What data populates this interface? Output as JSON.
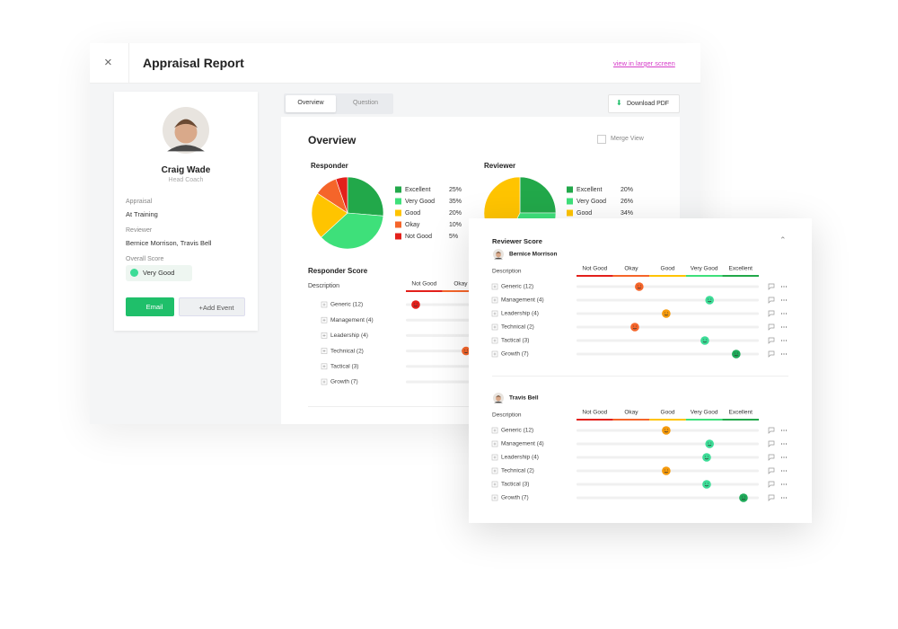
{
  "header": {
    "close": "×",
    "title": "Appraisal Report",
    "link": "view in larger screen"
  },
  "profile": {
    "name": "Craig Wade",
    "role": "Head Coach",
    "fields": [
      {
        "label": "Appraisal",
        "value": "At Training"
      },
      {
        "label": "Reviewer",
        "value": "Bernice Morrison, Travis Bell"
      },
      {
        "label": "Overall Score",
        "value": "Very Good"
      }
    ],
    "buttons": [
      "Email",
      "+Add Event"
    ]
  },
  "tabs": [
    "Overview",
    "Question"
  ],
  "download": "Download PDF",
  "overview": {
    "title": "Overview",
    "merge": "Merge View"
  },
  "chart_data": [
    {
      "type": "pie",
      "title": "Responder",
      "categories": [
        "Excellent",
        "Very Good",
        "Good",
        "Okay",
        "Not Good"
      ],
      "values": [
        25,
        35,
        20,
        10,
        5
      ],
      "value_labels": [
        "25%",
        "35%",
        "20%",
        "10%",
        "5%"
      ],
      "colors": [
        "#22a84a",
        "#3ee07a",
        "#ffc400",
        "#f5652a",
        "#e3201b"
      ]
    },
    {
      "type": "pie",
      "title": "Reviewer",
      "categories": [
        "Excellent",
        "Very Good",
        "Good"
      ],
      "values": [
        20,
        26,
        34
      ],
      "value_labels": [
        "20%",
        "26%",
        "34%"
      ],
      "colors": [
        "#22a84a",
        "#3ee07a",
        "#ffc400"
      ]
    }
  ],
  "scale": {
    "labels": [
      "Not Good",
      "Okay",
      "Good",
      "Very Good",
      "Excellent"
    ],
    "colors": [
      "#e3201b",
      "#f5652a",
      "#ffc400",
      "#3ee07a",
      "#22a84a"
    ]
  },
  "responder_score": {
    "title": "Responder Score",
    "description": "Description",
    "rows": [
      {
        "label": "Generic (12)",
        "score": 0.27
      },
      {
        "label": "Management (4)",
        "score": null
      },
      {
        "label": "Leadership (4)",
        "score": null
      },
      {
        "label": "Technical (2)",
        "score": 1.65
      },
      {
        "label": "Tactical (3)",
        "score": null
      },
      {
        "label": "Growth (7)",
        "score": null
      }
    ]
  },
  "reviewer_score": {
    "title": "Reviewer Score",
    "reviewers": [
      {
        "name": "Bernice Morrison",
        "description": "Description",
        "rows": [
          {
            "label": "Generic (12)",
            "score": 1.72
          },
          {
            "label": "Management (4)",
            "score": 3.65
          },
          {
            "label": "Leadership (4)",
            "score": 2.46
          },
          {
            "label": "Technical (2)",
            "score": 1.6
          },
          {
            "label": "Tactical (3)",
            "score": 3.52
          },
          {
            "label": "Growth (7)",
            "score": 4.38
          }
        ]
      },
      {
        "name": "Travis Bell",
        "description": "Description",
        "rows": [
          {
            "label": "Generic (12)",
            "score": 2.46
          },
          {
            "label": "Management (4)",
            "score": 3.65
          },
          {
            "label": "Leadership (4)",
            "score": 3.57
          },
          {
            "label": "Technical (2)",
            "score": 2.46
          },
          {
            "label": "Tactical (3)",
            "score": 3.57
          },
          {
            "label": "Growth (7)",
            "score": 4.58
          }
        ]
      }
    ]
  }
}
